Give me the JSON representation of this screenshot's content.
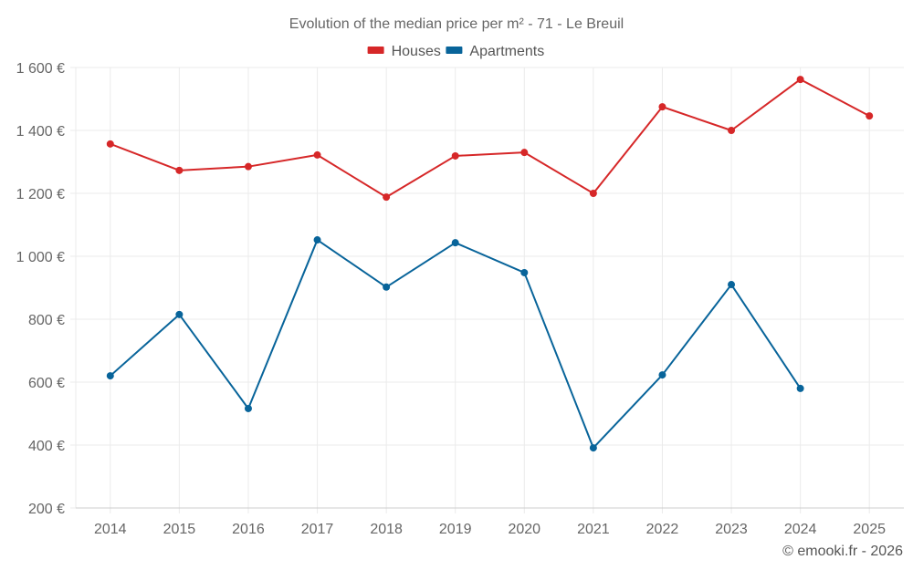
{
  "chart_data": {
    "type": "line",
    "title": "Evolution of the median price per m² - 71 - Le Breuil",
    "xlabel": "",
    "ylabel": "",
    "categories": [
      "2014",
      "2015",
      "2016",
      "2017",
      "2018",
      "2019",
      "2020",
      "2021",
      "2022",
      "2023",
      "2024",
      "2025"
    ],
    "ylim": [
      200,
      1600
    ],
    "yticks": [
      200,
      400,
      600,
      800,
      1000,
      1200,
      1400,
      1600
    ],
    "ytick_labels": [
      "200 €",
      "400 €",
      "600 €",
      "800 €",
      "1 000 €",
      "1 200 €",
      "1 400 €",
      "1 600 €"
    ],
    "grid": true,
    "legend_position": "top-center",
    "series": [
      {
        "name": "Houses",
        "color": "#d62728",
        "values": [
          1357,
          1273,
          1285,
          1322,
          1188,
          1319,
          1330,
          1200,
          1475,
          1400,
          1562,
          1446
        ]
      },
      {
        "name": "Apartments",
        "color": "#08649a",
        "values": [
          620,
          815,
          516,
          1052,
          902,
          1043,
          948,
          391,
          623,
          910,
          580,
          null
        ]
      }
    ]
  },
  "credit": "© emooki.fr - 2026"
}
